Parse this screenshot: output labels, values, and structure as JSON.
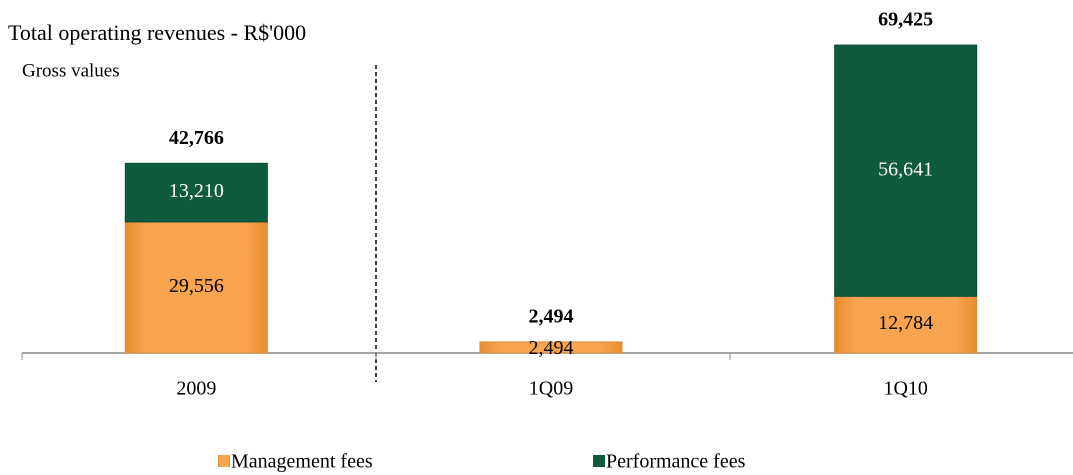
{
  "chart_data": {
    "type": "stacked-bar",
    "title": "Total operating revenues - R$'000",
    "subtitle": "Gross values",
    "categories": [
      "2009",
      "1Q09",
      "1Q10"
    ],
    "series": [
      {
        "name": "Management fees",
        "color": "#f7a04b",
        "values": [
          29556,
          2494,
          12784
        ],
        "value_labels": [
          "29,556",
          "2,494",
          "12,784"
        ]
      },
      {
        "name": "Performance fees",
        "color": "#0f5b3d",
        "values": [
          13210,
          null,
          56641
        ],
        "value_labels": [
          "13,210",
          null,
          "56,641"
        ]
      }
    ],
    "totals": [
      42766,
      2494,
      69425
    ],
    "total_labels": [
      "42,766",
      "2,494",
      "69,425"
    ],
    "ylim": [
      0,
      70000
    ],
    "legend": "bottom"
  }
}
